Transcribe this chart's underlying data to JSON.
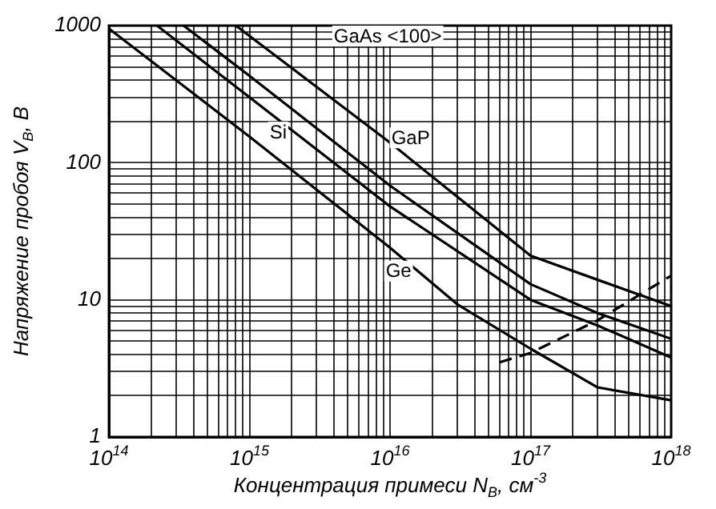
{
  "chart_data": {
    "type": "line",
    "xlabel": "Концентрация примеси N$_{B}$, см$^{-3}$",
    "ylabel": "Напряжение пробоя V$_{B}$, В",
    "log": "xy",
    "grid": true,
    "legend": false,
    "marker": "none",
    "xlim": [
      100000000000000.0,
      1e+18
    ],
    "ylim": [
      1,
      1000
    ],
    "xticks": [
      {
        "value": 100000000000000.0,
        "label": "10$^{14}$"
      },
      {
        "value": 200000000000000.0,
        "label": null
      },
      {
        "value": 300000000000000.0,
        "label": null
      },
      {
        "value": 400000000000000.0,
        "label": null
      },
      {
        "value": 500000000000000.0,
        "label": null
      },
      {
        "value": 600000000000000.0,
        "label": null
      },
      {
        "value": 700000000000000.0,
        "label": null
      },
      {
        "value": 800000000000000.0,
        "label": null
      },
      {
        "value": 900000000000000.0,
        "label": null
      },
      {
        "value": 1000000000000000.0,
        "label": "10$^{15}$"
      },
      {
        "value": 2000000000000000.0,
        "label": null
      },
      {
        "value": 3000000000000000.0,
        "label": null
      },
      {
        "value": 4000000000000000.0,
        "label": null
      },
      {
        "value": 5000000000000000.0,
        "label": null
      },
      {
        "value": 6000000000000000.0,
        "label": null
      },
      {
        "value": 7000000000000000.0,
        "label": null
      },
      {
        "value": 8000000000000000.0,
        "label": null
      },
      {
        "value": 9000000000000000.0,
        "label": null
      },
      {
        "value": 1e+16,
        "label": "10$^{16}$"
      },
      {
        "value": 2e+16,
        "label": null
      },
      {
        "value": 3e+16,
        "label": null
      },
      {
        "value": 4e+16,
        "label": null
      },
      {
        "value": 5e+16,
        "label": null
      },
      {
        "value": 6e+16,
        "label": null
      },
      {
        "value": 7e+16,
        "label": null
      },
      {
        "value": 8e+16,
        "label": null
      },
      {
        "value": 9e+16,
        "label": null
      },
      {
        "value": 1e+17,
        "label": "10$^{17}$"
      },
      {
        "value": 2e+17,
        "label": null
      },
      {
        "value": 3e+17,
        "label": null
      },
      {
        "value": 4e+17,
        "label": null
      },
      {
        "value": 5e+17,
        "label": null
      },
      {
        "value": 6e+17,
        "label": null
      },
      {
        "value": 7e+17,
        "label": null
      },
      {
        "value": 8e+17,
        "label": null
      },
      {
        "value": 9e+17,
        "label": null
      },
      {
        "value": 1e+18,
        "label": "10$^{18}$"
      }
    ],
    "yticks": [
      1,
      {
        "value": 2,
        "label": null
      },
      {
        "value": 3,
        "label": null
      },
      {
        "value": 4,
        "label": null
      },
      {
        "value": 5,
        "label": null
      },
      {
        "value": 6,
        "label": null
      },
      {
        "value": 7,
        "label": null
      },
      {
        "value": 8,
        "label": null
      },
      {
        "value": 9,
        "label": null
      },
      10,
      {
        "value": 20,
        "label": null
      },
      {
        "value": 30,
        "label": null
      },
      {
        "value": 40,
        "label": null
      },
      {
        "value": 50,
        "label": null
      },
      {
        "value": 60,
        "label": null
      },
      {
        "value": 70,
        "label": null
      },
      {
        "value": 80,
        "label": null
      },
      {
        "value": 90,
        "label": null
      },
      100,
      {
        "value": 200,
        "label": null
      },
      {
        "value": 300,
        "label": null
      },
      {
        "value": 400,
        "label": null
      },
      {
        "value": 500,
        "label": null
      },
      {
        "value": 600,
        "label": null
      },
      {
        "value": 700,
        "label": null
      },
      {
        "value": 800,
        "label": null
      },
      {
        "value": 900,
        "label": null
      },
      1000
    ],
    "series": [
      {
        "color": "#000000",
        "x": [
          100000000000000.0,
          1000000000000000.0,
          1e+16,
          3e+16,
          1e+17,
          3e+17,
          1e+18
        ],
        "values": [
          950,
          155,
          24,
          9.3,
          4.4,
          2.3,
          1.85
        ]
      },
      {
        "color": "#000000",
        "x": [
          220000000000000.0,
          1000000000000000.0,
          1e+16,
          1e+17,
          3e+17,
          1e+18
        ],
        "values": [
          1000,
          300,
          48,
          10,
          6.5,
          3.8
        ]
      },
      {
        "color": "#000000",
        "x": [
          340000000000000.0,
          1000000000000000.0,
          1e+16,
          1e+17,
          3e+17,
          1e+18
        ],
        "values": [
          1000,
          430,
          68,
          13,
          8,
          5.2
        ]
      },
      {
        "color": "#000000",
        "x": [
          800000000000000.0,
          1e+16,
          1e+17,
          3e+17,
          1e+18
        ],
        "values": [
          1000,
          140,
          21,
          14,
          9
        ]
      },
      {
        "color": "#000000",
        "line_style": "dashed",
        "x": [
          6e+16,
          1e+17,
          3e+17,
          1e+18
        ],
        "values": [
          3.5,
          4.1,
          7.1,
          15
        ]
      }
    ],
    "annotations": [
      "GaAs <100>",
      {
        "text": "Si",
        "x": 1600000000000000.0,
        "y": 165
      },
      {
        "text": "GaP",
        "x": 1.4e+16,
        "y": 150
      },
      {
        "text": "Ge",
        "x": 1.15e+16,
        "y": 16
      }
    ]
  }
}
